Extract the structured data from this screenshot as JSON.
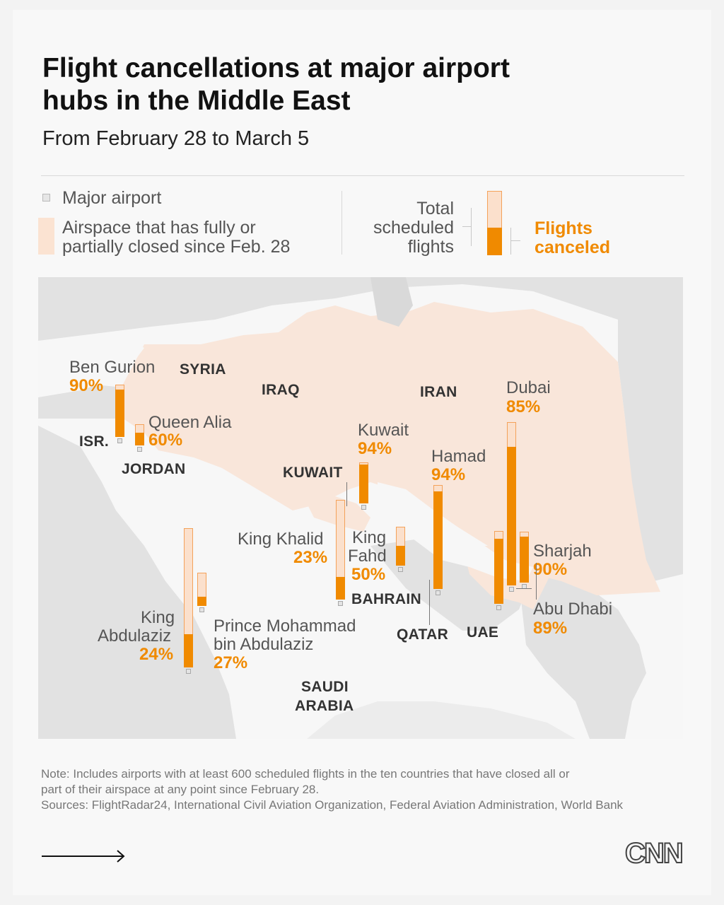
{
  "header": {
    "title": "Flight cancellations at major airport hubs in the Middle East",
    "subtitle": "From February 28 to March 5"
  },
  "legend": {
    "major_airport": "Major airport",
    "airspace_line1": "Airspace that has fully or",
    "airspace_line2": "partially closed since Feb. 28",
    "total_line1": "Total",
    "total_line2": "scheduled",
    "total_line3": "flights",
    "canceled_line1": "Flights",
    "canceled_line2": "canceled"
  },
  "colors": {
    "canceled": "#f08a00",
    "total": "#fbe0cc",
    "closed_airspace": "#f9e6da",
    "land": "#e2e2e2"
  },
  "countries": {
    "syria": "SYRIA",
    "iraq": "IRAQ",
    "iran": "IRAN",
    "israel": "ISR.",
    "jordan": "JORDAN",
    "kuwait": "KUWAIT",
    "bahrain": "BAHRAIN",
    "qatar": "QATAR",
    "uae": "UAE",
    "saudi_line1": "SAUDI",
    "saudi_line2": "ARABIA"
  },
  "chart_data": {
    "type": "bar",
    "title": "Flight cancellations at major airport hubs in the Middle East",
    "series": [
      {
        "name": "Total scheduled flights"
      },
      {
        "name": "Flights canceled"
      }
    ],
    "airports": [
      {
        "id": "ben_gurion",
        "name": "Ben Gurion",
        "pct_label": "90%",
        "canceled_share": 0.9
      },
      {
        "id": "queen_alia",
        "name": "Queen Alia",
        "pct_label": "60%",
        "canceled_share": 0.6
      },
      {
        "id": "kuwait",
        "name": "Kuwait",
        "pct_label": "94%",
        "canceled_share": 0.94
      },
      {
        "id": "hamad",
        "name": "Hamad",
        "pct_label": "94%",
        "canceled_share": 0.94
      },
      {
        "id": "dubai",
        "name": "Dubai",
        "pct_label": "85%",
        "canceled_share": 0.85
      },
      {
        "id": "king_khalid",
        "name": "King Khalid",
        "pct_label": "23%",
        "canceled_share": 0.23
      },
      {
        "id": "king_fahd",
        "name_line1": "King",
        "name_line2": "Fahd",
        "pct_label": "50%",
        "canceled_share": 0.5
      },
      {
        "id": "sharjah",
        "name": "Sharjah",
        "pct_label": "90%",
        "canceled_share": 0.9
      },
      {
        "id": "abu_dhabi",
        "name": "Abu Dhabi",
        "pct_label": "89%",
        "canceled_share": 0.89
      },
      {
        "id": "king_abdulaziz",
        "name_line1": "King",
        "name_line2": "Abdulaziz",
        "pct_label": "24%",
        "canceled_share": 0.24
      },
      {
        "id": "prince_mohammad",
        "name_line1": "Prince Mohammad",
        "name_line2": "bin Abdulaziz",
        "pct_label": "27%",
        "canceled_share": 0.27
      }
    ]
  },
  "footer": {
    "note_line1": "Note: Includes airports with at least 600 scheduled flights in the ten countries that have closed all or",
    "note_line2": "part of their airspace at any point since February 28.",
    "sources": "Sources: FlightRadar24, International Civil Aviation Organization, Federal Aviation Administration, World Bank",
    "logo": "CNN"
  }
}
